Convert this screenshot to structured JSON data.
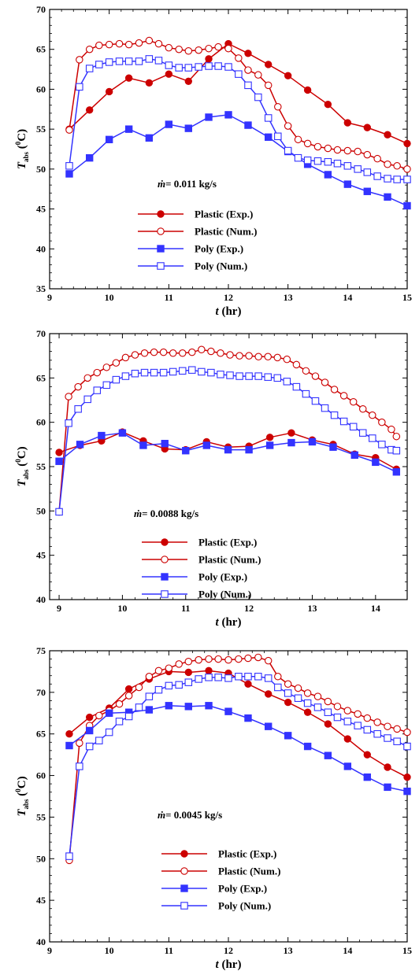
{
  "chart_data": [
    {
      "type": "line",
      "xlim": [
        9,
        15
      ],
      "ylim": [
        35,
        70
      ],
      "xticks": [
        9,
        10,
        11,
        12,
        13,
        14,
        15
      ],
      "yticks": [
        35,
        40,
        45,
        50,
        55,
        60,
        65,
        70
      ],
      "tick_labels_x": [
        "9",
        "10",
        "11",
        "12",
        "13",
        "14",
        "15"
      ],
      "tick_labels_y": [
        "35",
        "40",
        "45",
        "50",
        "55",
        "60",
        "65",
        "70"
      ],
      "xlabel": "t (hr)",
      "ylabel": "Tabs (0C)",
      "annotation": "ṁ= 0.011 kg/s",
      "legend_position": "lower-left",
      "series": [
        {
          "name": "Plastic (Exp.)",
          "color": "#cc0000",
          "marker": "filled-circle",
          "x": [
            9.33,
            9.67,
            10.0,
            10.33,
            10.67,
            11.0,
            11.33,
            11.67,
            12.0,
            12.33,
            12.67,
            13.0,
            13.33,
            13.67,
            14.0,
            14.33,
            14.67,
            15.0
          ],
          "y": [
            55.0,
            57.4,
            59.7,
            61.4,
            60.8,
            61.9,
            61.0,
            63.8,
            65.7,
            64.5,
            63.1,
            61.7,
            59.9,
            58.1,
            55.8,
            55.2,
            54.3,
            53.2
          ]
        },
        {
          "name": "Plastic (Num.)",
          "color": "#cc0000",
          "marker": "open-circle",
          "x": [
            9.33,
            9.5,
            9.67,
            9.83,
            10.0,
            10.17,
            10.33,
            10.5,
            10.67,
            10.83,
            11.0,
            11.17,
            11.33,
            11.5,
            11.67,
            11.83,
            12.0,
            12.17,
            12.33,
            12.5,
            12.67,
            12.83,
            13.0,
            13.17,
            13.33,
            13.5,
            13.67,
            13.83,
            14.0,
            14.17,
            14.33,
            14.5,
            14.67,
            14.83,
            15.0
          ],
          "y": [
            54.9,
            63.7,
            65.0,
            65.5,
            65.6,
            65.7,
            65.6,
            65.8,
            66.1,
            65.7,
            65.2,
            65.0,
            64.8,
            64.9,
            65.1,
            65.3,
            65.1,
            63.9,
            62.4,
            61.8,
            60.5,
            57.8,
            55.4,
            53.7,
            53.2,
            52.8,
            52.6,
            52.4,
            52.3,
            52.2,
            51.8,
            51.3,
            50.6,
            50.4,
            50.0
          ]
        },
        {
          "name": "Poly (Exp.)",
          "color": "#3333ff",
          "marker": "filled-square",
          "x": [
            9.33,
            9.67,
            10.0,
            10.33,
            10.67,
            11.0,
            11.33,
            11.67,
            12.0,
            12.33,
            12.67,
            13.0,
            13.33,
            13.67,
            14.0,
            14.33,
            14.67,
            15.0
          ],
          "y": [
            49.4,
            51.4,
            53.7,
            55.0,
            53.9,
            55.6,
            55.1,
            56.5,
            56.8,
            55.5,
            54.0,
            52.2,
            50.6,
            49.3,
            48.1,
            47.2,
            46.5,
            45.4
          ]
        },
        {
          "name": "Poly (Num.)",
          "color": "#3333ff",
          "marker": "open-square",
          "x": [
            9.33,
            9.5,
            9.67,
            9.83,
            10.0,
            10.17,
            10.33,
            10.5,
            10.67,
            10.83,
            11.0,
            11.17,
            11.33,
            11.5,
            11.67,
            11.83,
            12.0,
            12.17,
            12.33,
            12.5,
            12.67,
            12.83,
            13.0,
            13.17,
            13.33,
            13.5,
            13.67,
            13.83,
            14.0,
            14.17,
            14.33,
            14.5,
            14.67,
            14.83,
            15.0
          ],
          "y": [
            50.4,
            60.3,
            62.6,
            63.1,
            63.4,
            63.5,
            63.5,
            63.5,
            63.8,
            63.6,
            63.0,
            62.7,
            62.7,
            62.8,
            62.9,
            62.9,
            62.8,
            61.9,
            60.5,
            59.0,
            56.4,
            54.1,
            52.3,
            51.4,
            51.1,
            51.0,
            50.9,
            50.7,
            50.4,
            50.0,
            49.6,
            49.1,
            48.8,
            48.7,
            48.7
          ]
        }
      ]
    },
    {
      "type": "line",
      "xlim": [
        8.85,
        14.5
      ],
      "ylim": [
        40,
        70
      ],
      "xticks": [
        9,
        10,
        11,
        12,
        13,
        14
      ],
      "yticks": [
        40,
        45,
        50,
        55,
        60,
        65,
        70
      ],
      "tick_labels_x": [
        "9",
        "10",
        "11",
        "12",
        "13",
        "14"
      ],
      "tick_labels_y": [
        "40",
        "45",
        "50",
        "55",
        "60",
        "65",
        "70"
      ],
      "xlabel": "t (hr)",
      "ylabel": "Tabs (0C)",
      "annotation": "ṁ= 0.0088 kg/s",
      "legend_position": "lower-center",
      "series": [
        {
          "name": "Plastic (Exp.)",
          "color": "#cc0000",
          "marker": "filled-circle",
          "x": [
            9.0,
            9.33,
            9.67,
            10.0,
            10.33,
            10.67,
            11.0,
            11.33,
            11.67,
            12.0,
            12.33,
            12.67,
            13.0,
            13.33,
            13.67,
            14.0,
            14.33
          ],
          "y": [
            56.6,
            57.4,
            57.9,
            58.9,
            57.9,
            57.0,
            56.9,
            57.8,
            57.2,
            57.3,
            58.3,
            58.8,
            58.0,
            57.5,
            56.4,
            56.0,
            54.7
          ]
        },
        {
          "name": "Plastic (Num.)",
          "color": "#cc0000",
          "marker": "open-circle",
          "x": [
            9.0,
            9.15,
            9.3,
            9.45,
            9.6,
            9.75,
            9.9,
            10.05,
            10.2,
            10.35,
            10.5,
            10.65,
            10.8,
            10.95,
            11.1,
            11.25,
            11.4,
            11.55,
            11.7,
            11.85,
            12.0,
            12.15,
            12.3,
            12.45,
            12.6,
            12.75,
            12.9,
            13.05,
            13.2,
            13.35,
            13.5,
            13.65,
            13.8,
            13.95,
            14.1,
            14.25,
            14.33
          ],
          "y": [
            49.9,
            62.9,
            64.0,
            65.0,
            65.6,
            66.2,
            66.7,
            67.3,
            67.6,
            67.8,
            67.9,
            67.9,
            67.8,
            67.8,
            67.9,
            68.2,
            68.0,
            67.8,
            67.6,
            67.5,
            67.5,
            67.4,
            67.4,
            67.3,
            67.1,
            66.5,
            65.8,
            65.2,
            64.5,
            63.7,
            63.0,
            62.3,
            61.5,
            60.8,
            60.0,
            59.2,
            58.4
          ]
        },
        {
          "name": "Poly (Exp.)",
          "color": "#3333ff",
          "marker": "filled-square",
          "x": [
            9.0,
            9.33,
            9.67,
            10.0,
            10.33,
            10.67,
            11.0,
            11.33,
            11.67,
            12.0,
            12.33,
            12.67,
            13.0,
            13.33,
            13.67,
            14.0,
            14.33
          ],
          "y": [
            55.6,
            57.5,
            58.5,
            58.8,
            57.4,
            57.6,
            56.8,
            57.4,
            56.9,
            56.9,
            57.4,
            57.7,
            57.8,
            57.2,
            56.3,
            55.5,
            54.4
          ]
        },
        {
          "name": "Poly (Num.)",
          "color": "#3333ff",
          "marker": "open-square",
          "x": [
            9.0,
            9.15,
            9.3,
            9.45,
            9.6,
            9.75,
            9.9,
            10.05,
            10.2,
            10.35,
            10.5,
            10.65,
            10.8,
            10.95,
            11.1,
            11.25,
            11.4,
            11.55,
            11.7,
            11.85,
            12.0,
            12.15,
            12.3,
            12.45,
            12.6,
            12.75,
            12.9,
            13.05,
            13.2,
            13.35,
            13.5,
            13.65,
            13.8,
            13.95,
            14.1,
            14.25,
            14.33
          ],
          "y": [
            49.9,
            59.9,
            61.5,
            62.6,
            63.6,
            64.2,
            64.8,
            65.2,
            65.5,
            65.6,
            65.6,
            65.6,
            65.7,
            65.8,
            65.9,
            65.7,
            65.6,
            65.4,
            65.3,
            65.2,
            65.2,
            65.2,
            65.1,
            65.0,
            64.6,
            64.0,
            63.2,
            62.4,
            61.6,
            60.8,
            60.1,
            59.5,
            58.8,
            58.2,
            57.5,
            56.9,
            56.8
          ]
        }
      ]
    },
    {
      "type": "line",
      "xlim": [
        9,
        15
      ],
      "ylim": [
        40,
        75
      ],
      "xticks": [
        9,
        10,
        11,
        12,
        13,
        14,
        15
      ],
      "yticks": [
        40,
        45,
        50,
        55,
        60,
        65,
        70,
        75
      ],
      "tick_labels_x": [
        "9",
        "10",
        "11",
        "12",
        "13",
        "14",
        "15"
      ],
      "tick_labels_y": [
        "40",
        "45",
        "50",
        "55",
        "60",
        "65",
        "70",
        "75"
      ],
      "xlabel": "t (hr)",
      "ylabel": "Tabs (0C)",
      "annotation": "ṁ= 0.0045 kg/s",
      "legend_position": "lower-center",
      "series": [
        {
          "name": "Plastic (Exp.)",
          "color": "#cc0000",
          "marker": "filled-circle",
          "x": [
            9.33,
            9.67,
            10.0,
            10.33,
            10.67,
            11.0,
            11.33,
            11.67,
            12.0,
            12.33,
            12.67,
            13.0,
            13.33,
            13.67,
            14.0,
            14.33,
            14.67,
            15.0
          ],
          "y": [
            65.0,
            67.0,
            68.1,
            70.4,
            71.6,
            72.5,
            72.4,
            72.6,
            72.3,
            71.0,
            69.8,
            68.8,
            67.6,
            66.2,
            64.4,
            62.5,
            61.0,
            59.8
          ]
        },
        {
          "name": "Plastic (Num.)",
          "color": "#cc0000",
          "marker": "open-circle",
          "x": [
            9.33,
            9.5,
            9.67,
            9.83,
            10.0,
            10.17,
            10.33,
            10.5,
            10.67,
            10.83,
            11.0,
            11.17,
            11.33,
            11.5,
            11.67,
            11.83,
            12.0,
            12.17,
            12.33,
            12.5,
            12.67,
            12.83,
            13.0,
            13.17,
            13.33,
            13.5,
            13.67,
            13.83,
            14.0,
            14.17,
            14.33,
            14.5,
            14.67,
            14.83,
            15.0
          ],
          "y": [
            49.8,
            63.9,
            66.0,
            67.2,
            67.8,
            68.6,
            69.6,
            70.6,
            71.9,
            72.6,
            72.9,
            73.4,
            73.7,
            73.9,
            74.0,
            74.0,
            73.9,
            74.0,
            74.1,
            74.2,
            73.8,
            71.9,
            71.0,
            70.5,
            69.9,
            69.5,
            68.9,
            68.3,
            67.8,
            67.4,
            66.9,
            66.4,
            65.9,
            65.6,
            65.2
          ]
        },
        {
          "name": "Poly (Exp.)",
          "color": "#3333ff",
          "marker": "filled-square",
          "x": [
            9.33,
            9.67,
            10.0,
            10.33,
            10.67,
            11.0,
            11.33,
            11.67,
            12.0,
            12.33,
            12.67,
            13.0,
            13.33,
            13.67,
            14.0,
            14.33,
            14.67,
            15.0
          ],
          "y": [
            63.6,
            65.4,
            67.5,
            67.6,
            67.9,
            68.4,
            68.3,
            68.4,
            67.7,
            66.9,
            65.9,
            64.8,
            63.5,
            62.4,
            61.1,
            59.8,
            58.6,
            58.1
          ]
        },
        {
          "name": "Poly (Num.)",
          "color": "#3333ff",
          "marker": "open-square",
          "x": [
            9.33,
            9.5,
            9.67,
            9.83,
            10.0,
            10.17,
            10.33,
            10.5,
            10.67,
            10.83,
            11.0,
            11.17,
            11.33,
            11.5,
            11.67,
            11.83,
            12.0,
            12.17,
            12.33,
            12.5,
            12.67,
            12.83,
            13.0,
            13.17,
            13.33,
            13.5,
            13.67,
            13.83,
            14.0,
            14.17,
            14.33,
            14.5,
            14.67,
            14.83,
            15.0
          ],
          "y": [
            50.3,
            61.1,
            63.5,
            64.2,
            65.2,
            66.5,
            67.1,
            68.2,
            69.5,
            70.3,
            70.8,
            70.9,
            71.2,
            71.6,
            71.8,
            71.8,
            71.7,
            71.9,
            71.9,
            71.9,
            71.7,
            70.6,
            69.9,
            69.3,
            68.7,
            68.2,
            67.6,
            67.0,
            66.5,
            66.0,
            65.5,
            65.0,
            64.5,
            64.1,
            63.5
          ]
        }
      ]
    }
  ]
}
